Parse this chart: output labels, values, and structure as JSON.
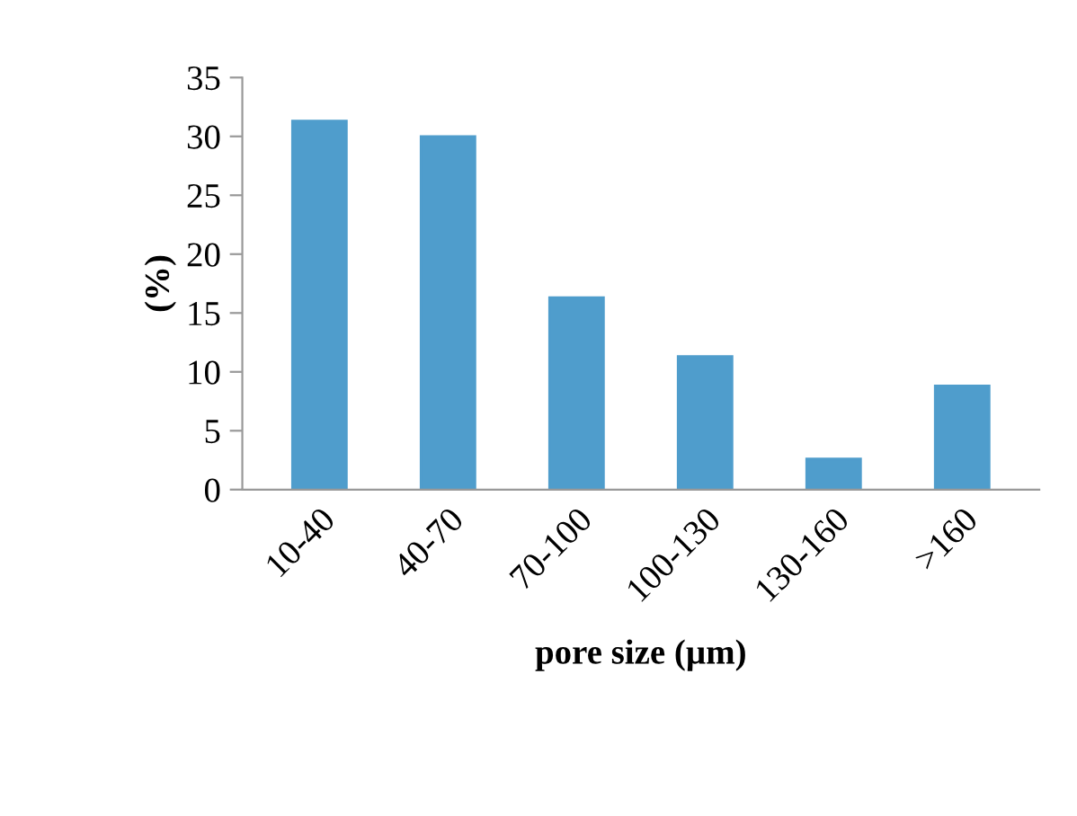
{
  "chart_data": {
    "type": "bar",
    "categories": [
      "10-40",
      "40-70",
      "70-100",
      "100-130",
      "130-160",
      ">160"
    ],
    "values": [
      31.3,
      30.0,
      16.3,
      11.3,
      2.6,
      8.8
    ],
    "color": "#4f9dcc",
    "xlabel": "pore size (µm)",
    "ylabel": "(%)",
    "ylim": [
      0,
      35
    ],
    "yticks": [
      0,
      5,
      10,
      15,
      20,
      25,
      30,
      35
    ],
    "grid": false,
    "legend": false
  }
}
